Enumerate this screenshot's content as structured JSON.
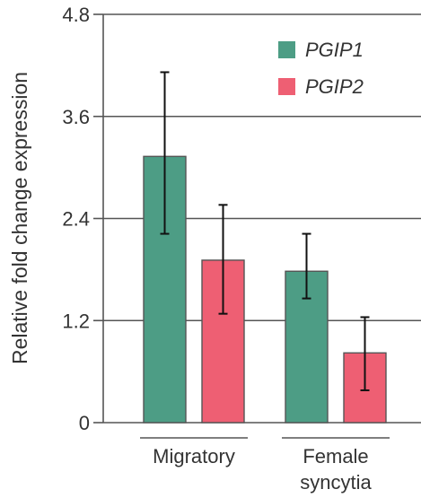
{
  "chart_data": {
    "type": "bar",
    "categories": [
      [
        "Migratory"
      ],
      [
        "Female",
        "syncytia"
      ]
    ],
    "series": [
      {
        "name": "PGIP1",
        "color": "#4d9d85",
        "values": [
          3.13,
          1.78
        ],
        "error_low": [
          2.22,
          1.46
        ],
        "error_high": [
          4.12,
          2.22
        ]
      },
      {
        "name": "PGIP2",
        "color": "#ee5f73",
        "values": [
          1.91,
          0.82
        ],
        "error_low": [
          1.28,
          0.38
        ],
        "error_high": [
          2.56,
          1.24
        ]
      }
    ],
    "ylabel": "Relative fold change expression",
    "ylim": [
      0,
      4.8
    ],
    "yticks": [
      0,
      1.2,
      2.4,
      3.6,
      4.8
    ],
    "ytick_labels": [
      "0",
      "1.2",
      "2.4",
      "3.6",
      "4.8"
    ],
    "grid": true,
    "legend_position": "top-right"
  }
}
